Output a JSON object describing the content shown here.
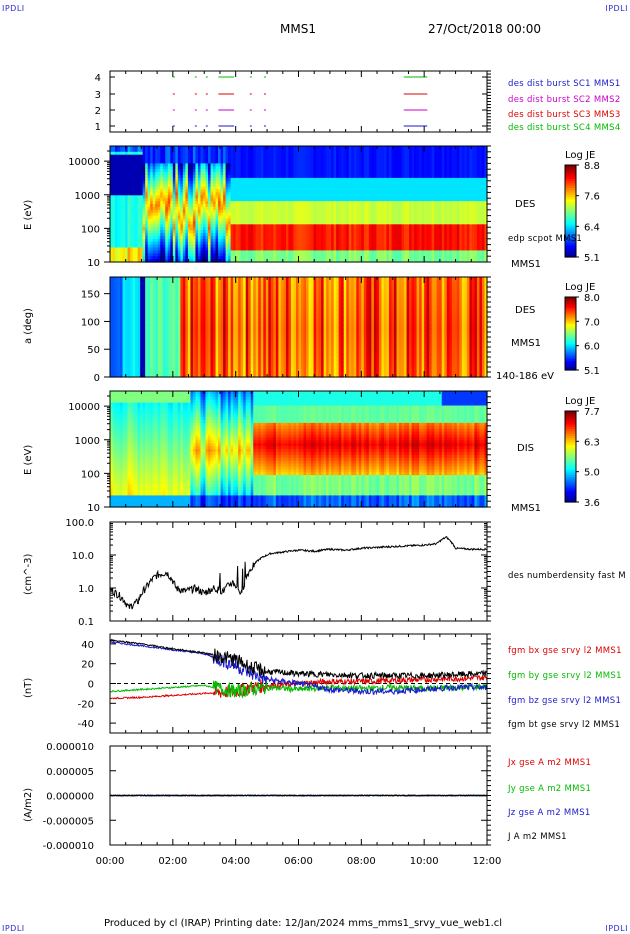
{
  "corner_tl": "IPDLI",
  "corner_tr": "IPDLI",
  "corner_bl": "IPDLI",
  "corner_br": "IPDLI",
  "header": {
    "spacecraft": "MMS1",
    "date": "27/Oct/2018 00:00"
  },
  "footer": "Produced by cl (IRAP)   Printing date: 12/Jan/2024   mms_mms1_srvy_vue_web1.cl",
  "colors": {
    "sc1": "#1a1acc",
    "sc2": "#cc00cc",
    "sc3": "#dd0000",
    "sc4": "#00bb00",
    "black": "#000000"
  },
  "chart_data": [
    {
      "type": "scatter",
      "name": "burst-availability",
      "yticks": [
        "1",
        "2",
        "3",
        "4"
      ],
      "labels": [
        "des dist burst SC1 MMS1",
        "des dist burst SC2 MMS2",
        "des dist burst SC3 MMS3",
        "des dist burst SC4 MMS4"
      ],
      "intervals_hours": [
        [
          2.0,
          2.03
        ],
        [
          2.7,
          2.73
        ],
        [
          3.05,
          3.1
        ],
        [
          3.45,
          3.95
        ],
        [
          4.45,
          4.5
        ],
        [
          4.9,
          4.95
        ],
        [
          9.35,
          10.1
        ]
      ]
    },
    {
      "type": "heatmap",
      "name": "des-energy-spectrogram",
      "ylabel": "E (eV)",
      "yscale": "log",
      "yticks": [
        "10",
        "100",
        "1000",
        "10000"
      ],
      "instrument": "DES",
      "extra_label": "edp scpot MMS1",
      "sc_label": "MMS1",
      "colorbar": {
        "title": "Log JE",
        "ticks": [
          "8.8",
          "7.6",
          "6.4",
          "5.1"
        ],
        "range": [
          5.1,
          8.8
        ]
      }
    },
    {
      "type": "heatmap",
      "name": "des-pitch-angle",
      "ylabel": "a (deg)",
      "yticks": [
        "0",
        "50",
        "100",
        "150"
      ],
      "ylim": [
        0,
        180
      ],
      "instrument": "DES",
      "sc_label": "MMS1",
      "energy_label": "140-186 eV",
      "colorbar": {
        "title": "Log JE",
        "ticks": [
          "8.0",
          "7.0",
          "6.0",
          "5.1"
        ],
        "range": [
          5.1,
          8.0
        ]
      }
    },
    {
      "type": "heatmap",
      "name": "dis-energy-spectrogram",
      "ylabel": "E (eV)",
      "yscale": "log",
      "yticks": [
        "10",
        "100",
        "1000",
        "10000"
      ],
      "instrument": "DIS",
      "sc_label": "MMS1",
      "colorbar": {
        "title": "Log JE",
        "ticks": [
          "7.7",
          "6.3",
          "5.0",
          "3.6"
        ],
        "range": [
          3.6,
          7.7
        ]
      }
    },
    {
      "type": "line",
      "name": "number-density",
      "ylabel": "(cm^-3)",
      "yscale": "log",
      "ylim": [
        0.1,
        100
      ],
      "yticks": [
        "0.1",
        "1.0",
        "10.0",
        "100.0"
      ],
      "series": [
        {
          "name": "des numberdensity fast M",
          "color": "#000000",
          "x": [
            0,
            0.3,
            0.6,
            0.9,
            1.2,
            1.5,
            1.8,
            2.1,
            2.4,
            2.7,
            3.0,
            3.3,
            3.6,
            3.9,
            4.2,
            4.5,
            4.8,
            5.1,
            5.4,
            5.7,
            6.0,
            6.5,
            7.0,
            7.5,
            8.0,
            8.5,
            9.0,
            9.5,
            10.0,
            10.4,
            10.7,
            11.0,
            11.5,
            12.0
          ],
          "y": [
            0.9,
            0.6,
            0.25,
            0.4,
            1.2,
            2.5,
            3.0,
            1.0,
            0.8,
            1.0,
            0.7,
            1.0,
            0.8,
            1.5,
            0.6,
            4.0,
            8.0,
            11.0,
            12.0,
            13.0,
            14.0,
            13.0,
            15.0,
            14.0,
            16.0,
            17.0,
            18.0,
            19.0,
            20.0,
            22.0,
            35.0,
            16.0,
            15.0,
            15.0
          ]
        }
      ]
    },
    {
      "type": "line",
      "name": "magnetic-field",
      "ylabel": "(nT)",
      "ylim": [
        -50,
        50
      ],
      "yticks": [
        "-40",
        "-20",
        "0",
        "20",
        "40"
      ],
      "series": [
        {
          "name": "fgm bx gse srvy l2 MMS1",
          "color": "#dd0000",
          "x": [
            0,
            1,
            2,
            3,
            4,
            4.5,
            5,
            6,
            7,
            8,
            9,
            10,
            11,
            12
          ],
          "y": [
            -15,
            -14,
            -12,
            -10,
            -8,
            -4,
            -2,
            0,
            2,
            2,
            3,
            4,
            5,
            6
          ]
        },
        {
          "name": "fgm by gse srvy l2 MMS1",
          "color": "#00bb00",
          "x": [
            0,
            1,
            2,
            3,
            4,
            4.5,
            5,
            6,
            7,
            8,
            9,
            10,
            11,
            12
          ],
          "y": [
            -8,
            -6,
            -4,
            -2,
            -8,
            -6,
            -4,
            -6,
            -4,
            -5,
            -4,
            -5,
            -4,
            -3
          ]
        },
        {
          "name": "fgm bz gse srvy l2 MMS1",
          "color": "#1a1acc",
          "x": [
            0,
            1,
            2,
            3,
            4,
            4.5,
            5,
            6,
            7,
            8,
            9,
            10,
            11,
            12
          ],
          "y": [
            42,
            38,
            34,
            30,
            18,
            10,
            4,
            0,
            -6,
            -8,
            -8,
            -6,
            -4,
            -4
          ]
        },
        {
          "name": "fgm bt gse srvy l2 MMS1",
          "color": "#000000",
          "x": [
            0,
            1,
            2,
            3,
            4,
            4.5,
            5,
            6,
            7,
            8,
            9,
            10,
            11,
            12
          ],
          "y": [
            44,
            40,
            35,
            31,
            24,
            16,
            12,
            10,
            9,
            8,
            8,
            8,
            9,
            10
          ]
        }
      ]
    },
    {
      "type": "line",
      "name": "current-density",
      "ylabel": "(A/m2)",
      "ylim": [
        -1e-05,
        1e-05
      ],
      "yticks": [
        "-0.000010",
        "-0.000005",
        "0.000000",
        "0.000005",
        "0.000010"
      ],
      "series": [
        {
          "name": "Jx gse A m2 MMS1",
          "color": "#dd0000",
          "x": [
            0,
            12
          ],
          "y": [
            0,
            0
          ]
        },
        {
          "name": "Jy gse A m2 MMS1",
          "color": "#00bb00",
          "x": [
            0,
            12
          ],
          "y": [
            0,
            0
          ]
        },
        {
          "name": "Jz gse A m2 MMS1",
          "color": "#1a1acc",
          "x": [
            0,
            12
          ],
          "y": [
            0,
            0
          ]
        },
        {
          "name": "J A m2 MMS1",
          "color": "#000000",
          "x": [
            0,
            12
          ],
          "y": [
            0,
            0
          ]
        }
      ]
    }
  ],
  "xaxis": {
    "ticks": [
      "00:00",
      "02:00",
      "04:00",
      "06:00",
      "08:00",
      "10:00",
      "12:00"
    ],
    "xlim": [
      0,
      12
    ]
  }
}
